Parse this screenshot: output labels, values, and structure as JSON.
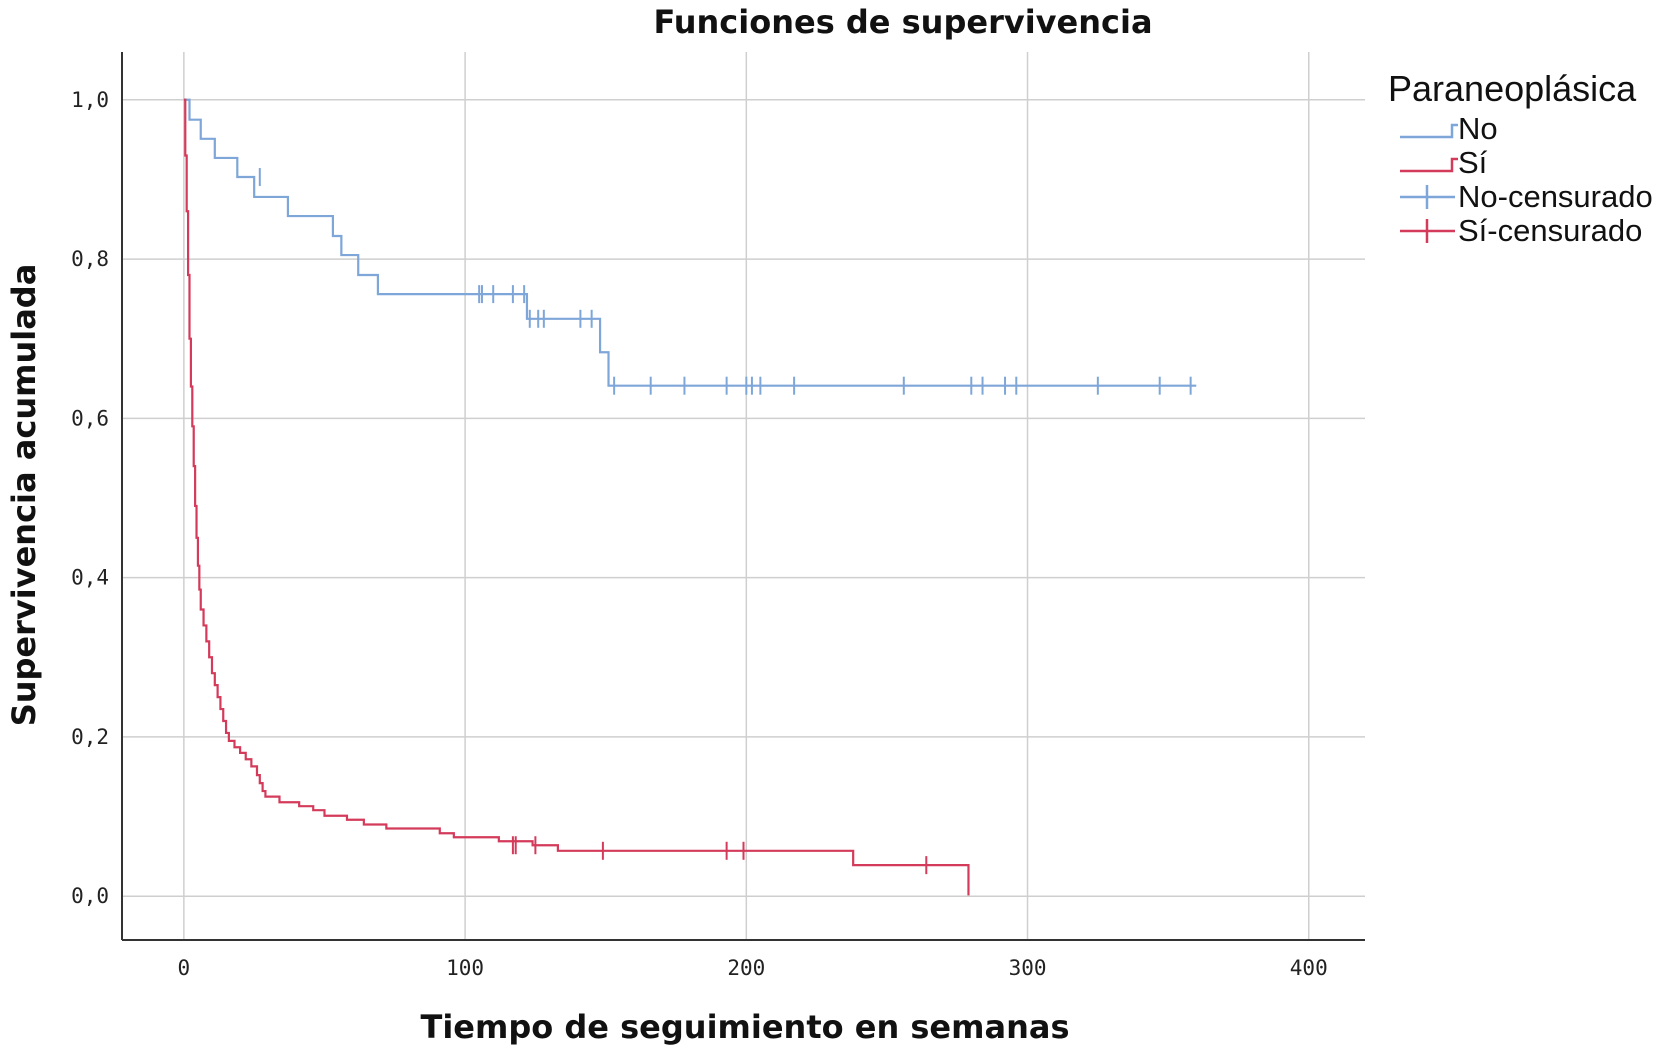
{
  "chart_data": {
    "type": "line",
    "subtype": "kaplan-meier-step",
    "title": "Funciones de supervivencia",
    "xlabel": "Tiempo de seguimiento en semanas",
    "ylabel": "Supervivencia acumulada",
    "xlim": [
      -22,
      420
    ],
    "ylim": [
      -0.055,
      1.06
    ],
    "x_ticks": [
      0,
      100,
      200,
      300,
      400
    ],
    "x_tick_labels": [
      "0",
      "100",
      "200",
      "300",
      "400"
    ],
    "y_ticks": [
      0,
      0.2,
      0.4,
      0.6,
      0.8,
      1.0
    ],
    "y_tick_labels": [
      "0,0",
      "0,2",
      "0,4",
      "0,6",
      "0,8",
      "1,0"
    ],
    "grid": true,
    "legend": {
      "title": "Paraneoplásica",
      "position": "top-right",
      "entries": [
        {
          "label": "No",
          "kind": "line",
          "series": "No"
        },
        {
          "label": "Sí",
          "kind": "line",
          "series": "Sí"
        },
        {
          "label": "No-censurado",
          "kind": "censor",
          "series": "No"
        },
        {
          "label": "Sí-censurado",
          "kind": "censor",
          "series": "Sí"
        }
      ]
    },
    "series": [
      {
        "name": "No",
        "color": "#7ea6d9",
        "steps": [
          [
            0,
            1.0
          ],
          [
            2,
            0.975
          ],
          [
            6,
            0.951
          ],
          [
            11,
            0.927
          ],
          [
            19,
            0.903
          ],
          [
            25,
            0.878
          ],
          [
            37,
            0.854
          ],
          [
            53,
            0.829
          ],
          [
            56,
            0.805
          ],
          [
            62,
            0.78
          ],
          [
            69,
            0.756
          ],
          [
            122,
            0.725
          ],
          [
            148,
            0.683
          ],
          [
            151,
            0.641
          ],
          [
            360,
            0.641
          ]
        ],
        "censored": [
          [
            27,
            0.903
          ],
          [
            105,
            0.756
          ],
          [
            106,
            0.756
          ],
          [
            110,
            0.756
          ],
          [
            117,
            0.756
          ],
          [
            121,
            0.756
          ],
          [
            123,
            0.725
          ],
          [
            126,
            0.725
          ],
          [
            128,
            0.725
          ],
          [
            141,
            0.725
          ],
          [
            145,
            0.725
          ],
          [
            153,
            0.641
          ],
          [
            166,
            0.641
          ],
          [
            178,
            0.641
          ],
          [
            193,
            0.641
          ],
          [
            200,
            0.641
          ],
          [
            202,
            0.641
          ],
          [
            205,
            0.641
          ],
          [
            217,
            0.641
          ],
          [
            256,
            0.641
          ],
          [
            280,
            0.641
          ],
          [
            284,
            0.641
          ],
          [
            292,
            0.641
          ],
          [
            296,
            0.641
          ],
          [
            325,
            0.641
          ],
          [
            347,
            0.641
          ],
          [
            358,
            0.641
          ]
        ]
      },
      {
        "name": "Sí",
        "color": "#d43a5a",
        "steps": [
          [
            0,
            1.0
          ],
          [
            0.5,
            0.93
          ],
          [
            1,
            0.86
          ],
          [
            1.5,
            0.78
          ],
          [
            2,
            0.7
          ],
          [
            2.5,
            0.64
          ],
          [
            3,
            0.59
          ],
          [
            3.5,
            0.54
          ],
          [
            4,
            0.49
          ],
          [
            4.5,
            0.45
          ],
          [
            5,
            0.415
          ],
          [
            5.5,
            0.385
          ],
          [
            6,
            0.36
          ],
          [
            7,
            0.34
          ],
          [
            8,
            0.32
          ],
          [
            9,
            0.3
          ],
          [
            10,
            0.28
          ],
          [
            11,
            0.265
          ],
          [
            12,
            0.25
          ],
          [
            13,
            0.235
          ],
          [
            14,
            0.22
          ],
          [
            15,
            0.205
          ],
          [
            16,
            0.195
          ],
          [
            18,
            0.187
          ],
          [
            20,
            0.18
          ],
          [
            22,
            0.172
          ],
          [
            24,
            0.163
          ],
          [
            26,
            0.152
          ],
          [
            27,
            0.142
          ],
          [
            28,
            0.132
          ],
          [
            29,
            0.125
          ],
          [
            34,
            0.118
          ],
          [
            41,
            0.113
          ],
          [
            46,
            0.108
          ],
          [
            50,
            0.101
          ],
          [
            58,
            0.096
          ],
          [
            64,
            0.09
          ],
          [
            72,
            0.085
          ],
          [
            91,
            0.079
          ],
          [
            96,
            0.074
          ],
          [
            112,
            0.069
          ],
          [
            124,
            0.064
          ],
          [
            133,
            0.057
          ],
          [
            238,
            0.039
          ],
          [
            279,
            0.039
          ],
          [
            279,
            0.001
          ]
        ],
        "censored": [
          [
            117,
            0.064
          ],
          [
            118,
            0.064
          ],
          [
            125,
            0.064
          ],
          [
            149,
            0.057
          ],
          [
            193,
            0.057
          ],
          [
            199,
            0.057
          ],
          [
            264,
            0.039
          ]
        ]
      }
    ]
  }
}
